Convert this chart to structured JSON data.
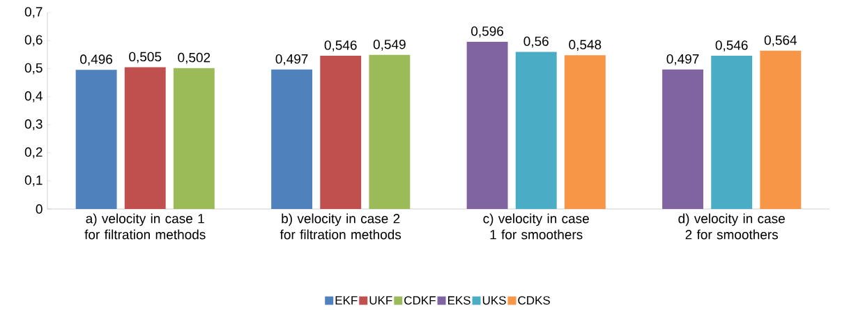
{
  "chart_data": {
    "type": "bar",
    "categories": [
      "a) velocity in case 1 for filtration methods",
      "b) velocity in case 2 for filtration methods",
      "c) velocity in case 1 for smoothers",
      "d) velocity in case 2 for smoothers"
    ],
    "series": [
      {
        "name": "EKF",
        "color": "#4f81bd",
        "values": [
          0.496,
          0.497,
          null,
          null
        ],
        "value_labels": [
          "0,496",
          "0,497",
          null,
          null
        ]
      },
      {
        "name": "UKF",
        "color": "#c0504d",
        "values": [
          0.505,
          0.546,
          null,
          null
        ],
        "value_labels": [
          "0,505",
          "0,546",
          null,
          null
        ]
      },
      {
        "name": "CDKF",
        "color": "#9bbb59",
        "values": [
          0.502,
          0.549,
          null,
          null
        ],
        "value_labels": [
          "0,502",
          "0,549",
          null,
          null
        ]
      },
      {
        "name": "EKS",
        "color": "#8064a2",
        "values": [
          null,
          null,
          0.596,
          0.497
        ],
        "value_labels": [
          null,
          null,
          "0,596",
          "0,497"
        ]
      },
      {
        "name": "UKS",
        "color": "#4bacc6",
        "values": [
          null,
          null,
          0.56,
          0.546
        ],
        "value_labels": [
          null,
          null,
          "0,56",
          "0,546"
        ]
      },
      {
        "name": "CDKS",
        "color": "#f79646",
        "values": [
          null,
          null,
          0.548,
          0.564
        ],
        "value_labels": [
          null,
          null,
          "0,548",
          "0,564"
        ]
      }
    ],
    "ylim": [
      0,
      0.7
    ],
    "yticks": [
      0,
      {
        "value": 0.1,
        "label": "0,1"
      },
      {
        "value": 0.2,
        "label": "0,2"
      },
      {
        "value": 0.3,
        "label": "0,3"
      },
      {
        "value": 0.4,
        "label": "0,4"
      },
      {
        "value": 0.5,
        "label": "0,5"
      },
      {
        "value": 0.6,
        "label": "0,6"
      },
      {
        "value": 0.7,
        "label": "0,7"
      }
    ],
    "legend": "bottom"
  }
}
